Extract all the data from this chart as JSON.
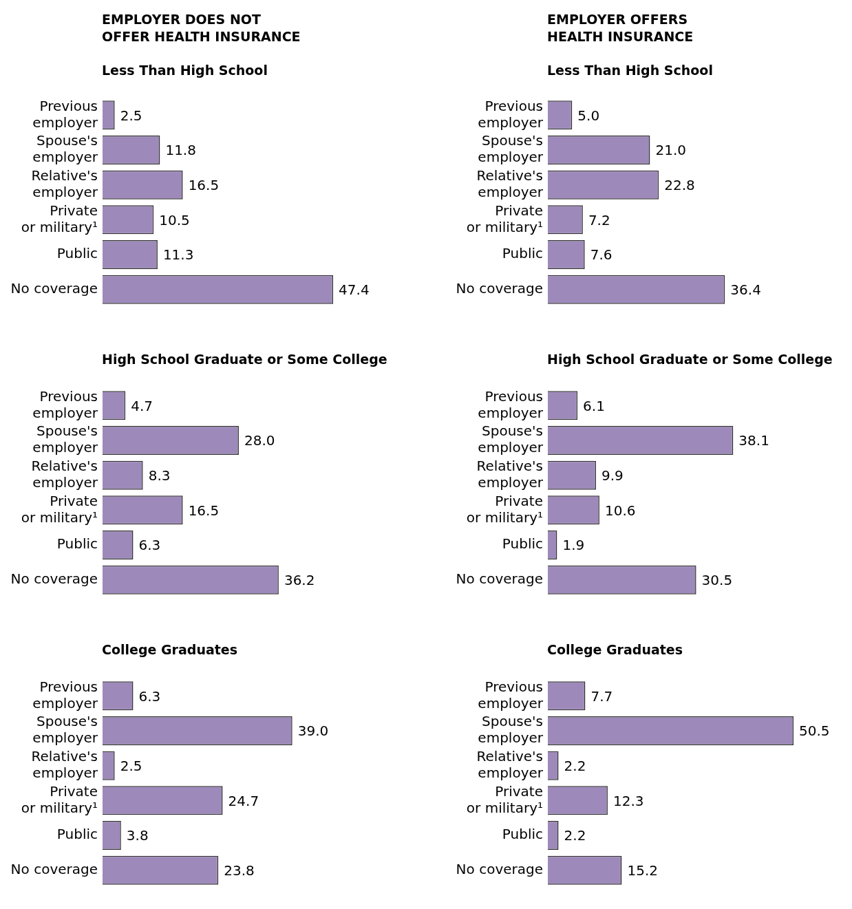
{
  "chart_data": [
    {
      "type": "bar",
      "orientation": "horizontal",
      "title": "EMPLOYER DOES NOT OFFER HEALTH INSURANCE",
      "subtitle": "Less Than High School",
      "categories": [
        "Previous employer",
        "Spouse's employer",
        "Relative's employer",
        "Private or military¹",
        "Public",
        "No coverage"
      ],
      "values": [
        2.5,
        11.8,
        16.5,
        10.5,
        11.3,
        47.4
      ],
      "value_labels": [
        "2.5",
        "11.8",
        "16.5",
        "10.5",
        "11.3",
        "47.4"
      ],
      "color": "#9e8aba",
      "tick_labels": "y"
    },
    {
      "type": "bar",
      "orientation": "horizontal",
      "title": "EMPLOYER OFFERS HEALTH INSURANCE",
      "subtitle": "Less Than High School",
      "categories": [
        "Previous employer",
        "Spouse's employer",
        "Relative's employer",
        "Private or military¹",
        "Public",
        "No coverage"
      ],
      "values": [
        5.0,
        21.0,
        22.8,
        7.2,
        7.6,
        36.4
      ],
      "value_labels": [
        "5.0",
        "21.0",
        "22.8",
        "7.2",
        "7.6",
        "36.4"
      ],
      "color": "#9e8aba",
      "tick_labels": "y"
    },
    {
      "type": "bar",
      "orientation": "horizontal",
      "title": "High School Graduate or Some College",
      "categories": [
        "Previous employer",
        "Spouse's employer",
        "Relative's employer",
        "Private or military¹",
        "Public",
        "No coverage"
      ],
      "values": [
        4.7,
        28.0,
        8.3,
        16.5,
        6.3,
        36.2
      ],
      "value_labels": [
        "4.7",
        "28.0",
        "8.3",
        "16.5",
        "6.3",
        "36.2"
      ],
      "color": "#9e8aba",
      "tick_labels": "y"
    },
    {
      "type": "bar",
      "orientation": "horizontal",
      "title": "High School Graduate or Some College",
      "categories": [
        "Previous employer",
        "Spouse's employer",
        "Relative's employer",
        "Private or military¹",
        "Public",
        "No coverage"
      ],
      "values": [
        6.1,
        38.1,
        9.9,
        10.6,
        1.9,
        30.5
      ],
      "value_labels": [
        "6.1",
        "38.1",
        "9.9",
        "10.6",
        "1.9",
        "30.5"
      ],
      "color": "#9e8aba",
      "tick_labels": "y"
    },
    {
      "type": "bar",
      "orientation": "horizontal",
      "title": "College Graduates",
      "categories": [
        "Previous employer",
        "Spouse's employer",
        "Relative's employer",
        "Private or military¹",
        "Public",
        "No coverage"
      ],
      "values": [
        6.3,
        39.0,
        2.5,
        24.7,
        3.8,
        23.8
      ],
      "value_labels": [
        "6.3",
        "39.0",
        "2.5",
        "24.7",
        "3.8",
        "23.8"
      ],
      "color": "#9e8aba",
      "tick_labels": "y"
    },
    {
      "type": "bar",
      "orientation": "horizontal",
      "title": "College Graduates",
      "categories": [
        "Previous employer",
        "Spouse's employer",
        "Relative's employer",
        "Private or military¹",
        "Public",
        "No coverage"
      ],
      "values": [
        7.7,
        50.5,
        2.2,
        12.3,
        2.2,
        15.2
      ],
      "value_labels": [
        "7.7",
        "50.5",
        "2.2",
        "12.3",
        "2.2",
        "15.2"
      ],
      "color": "#9e8aba",
      "tick_labels": "y"
    }
  ]
}
